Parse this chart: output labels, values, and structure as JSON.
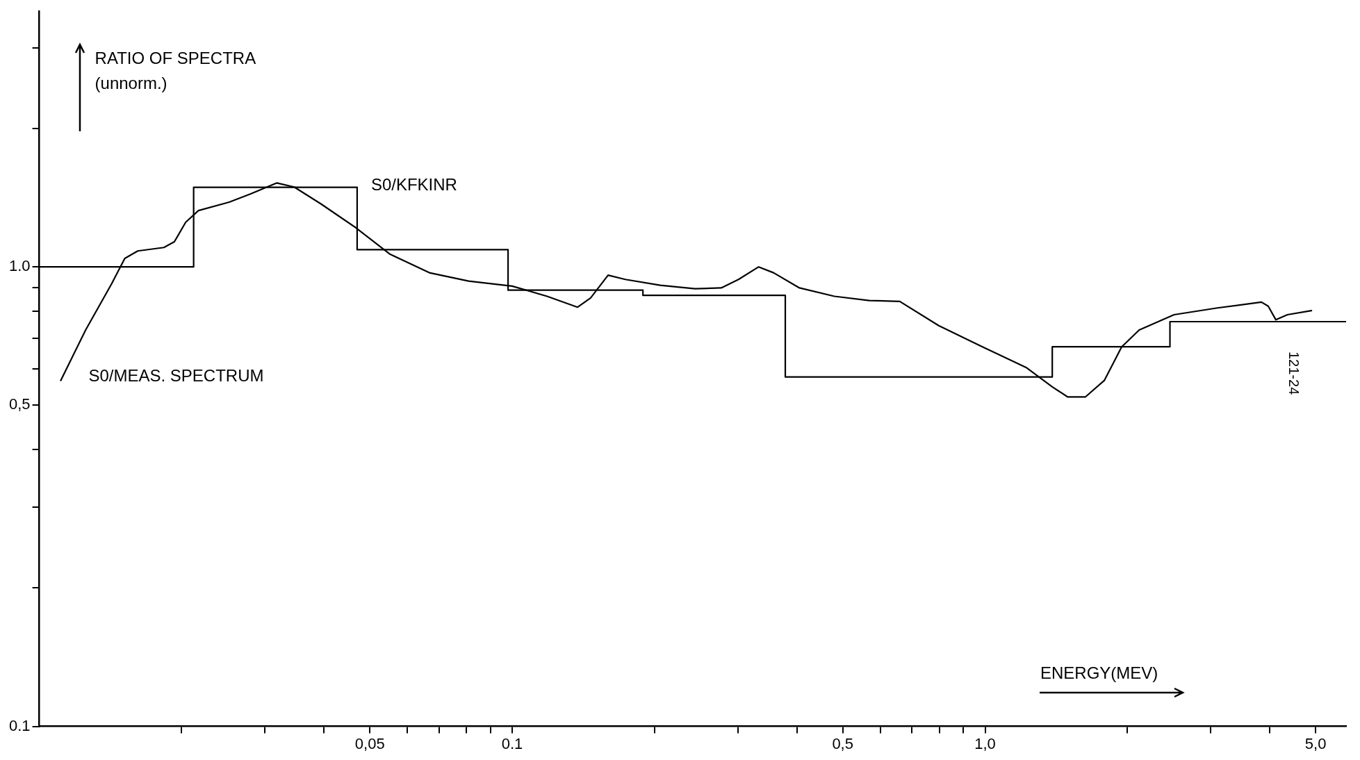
{
  "chart_data": {
    "type": "line",
    "ylabel": "RATIO OF SPECTRA\n(unnorm.)",
    "xlabel": "ENERGY(MEV)",
    "annotations": [
      "121-24"
    ],
    "log": "xy",
    "grid": false,
    "legend": false,
    "marker": "none",
    "line_style": "solid",
    "xlim": [
      0.01,
      5.8
    ],
    "ylim": [
      0.1,
      3.6
    ],
    "xticks": [
      {
        "value": 0.02,
        "label": null
      },
      {
        "value": 0.03,
        "label": null
      },
      {
        "value": 0.04,
        "label": null
      },
      {
        "value": 0.05,
        "label": "0,05"
      },
      {
        "value": 0.06,
        "label": null
      },
      {
        "value": 0.07,
        "label": null
      },
      {
        "value": 0.08,
        "label": null
      },
      {
        "value": 0.09,
        "label": null
      },
      {
        "value": 0.1,
        "label": "0.1"
      },
      {
        "value": 0.2,
        "label": null
      },
      {
        "value": 0.3,
        "label": null
      },
      {
        "value": 0.4,
        "label": null
      },
      {
        "value": 0.5,
        "label": "0,5"
      },
      {
        "value": 0.6,
        "label": null
      },
      {
        "value": 0.7,
        "label": null
      },
      {
        "value": 0.8,
        "label": null
      },
      {
        "value": 0.9,
        "label": null
      },
      {
        "value": 1,
        "label": "1,0"
      },
      {
        "value": 2,
        "label": null
      },
      {
        "value": 3,
        "label": null
      },
      {
        "value": 4,
        "label": null
      },
      {
        "value": 5,
        "label": "5,0"
      }
    ],
    "yticks": [
      {
        "value": 0.1,
        "label": "0.1"
      },
      {
        "value": 0.2,
        "label": null
      },
      {
        "value": 0.3,
        "label": null
      },
      {
        "value": 0.4,
        "label": null
      },
      {
        "value": 0.5,
        "label": "0,5"
      },
      {
        "value": 0.6,
        "label": null
      },
      {
        "value": 0.7,
        "label": null
      },
      {
        "value": 0.8,
        "label": null
      },
      {
        "value": 0.9,
        "label": null
      },
      {
        "value": 1,
        "label": "1.0"
      },
      {
        "value": 2,
        "label": null
      },
      {
        "value": 3,
        "label": null
      }
    ],
    "series": [
      {
        "name": "S0/KFKINR",
        "type": "step",
        "color": "#000000",
        "x": [
          0.01,
          0.0212,
          0.047,
          0.098,
          0.189,
          0.378,
          1.387,
          2.46,
          5.8
        ],
        "values": [
          1.0,
          1.49,
          1.09,
          0.89,
          0.867,
          0.576,
          0.67,
          0.76,
          0.76
        ]
      },
      {
        "name": "S0/MEAS. SPECTRUM",
        "type": "line",
        "color": "#000000",
        "x": [
          0.0111,
          0.01253,
          0.01422,
          0.01516,
          0.01615,
          0.01834,
          0.0193,
          0.02039,
          0.0217,
          0.0252,
          0.028,
          0.0318,
          0.0346,
          0.0394,
          0.0466,
          0.0552,
          0.0668,
          0.0809,
          0.1,
          0.1185,
          0.1375,
          0.1465,
          0.1595,
          0.1735,
          0.2056,
          0.2436,
          0.2767,
          0.301,
          0.332,
          0.357,
          0.405,
          0.48,
          0.569,
          0.66,
          0.798,
          0.987,
          1.221,
          1.387,
          1.496,
          1.629,
          1.787,
          1.945,
          2.118,
          2.51,
          3.1,
          3.84,
          3.97,
          4.12,
          4.36,
          4.9
        ],
        "values": [
          0.566,
          0.729,
          0.919,
          1.043,
          1.083,
          1.102,
          1.134,
          1.25,
          1.326,
          1.383,
          1.442,
          1.523,
          1.492,
          1.371,
          1.219,
          1.065,
          0.971,
          0.931,
          0.908,
          0.863,
          0.817,
          0.856,
          0.959,
          0.939,
          0.912,
          0.896,
          0.9,
          0.939,
          1.0,
          0.971,
          0.9,
          0.863,
          0.845,
          0.841,
          0.745,
          0.67,
          0.604,
          0.548,
          0.521,
          0.521,
          0.566,
          0.67,
          0.729,
          0.787,
          0.814,
          0.838,
          0.821,
          0.767,
          0.787,
          0.803
        ]
      }
    ]
  }
}
